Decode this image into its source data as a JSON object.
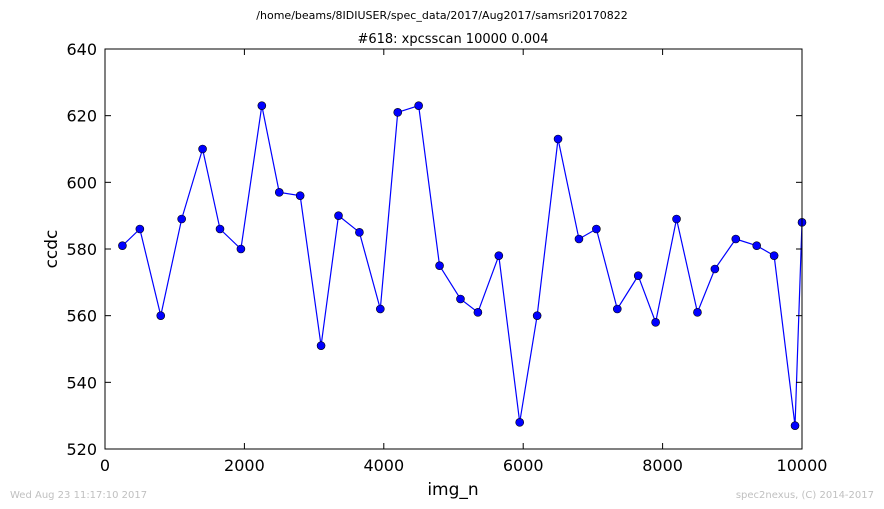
{
  "chart_data": {
    "type": "line",
    "suptitle": "/home/beams/8IDIUSER/spec_data/2017/Aug2017/samsri20170822",
    "title": "#618: xpcsscan 10000 0.004",
    "xlabel": "img_n",
    "ylabel": "ccdc",
    "xlim": [
      0,
      10000
    ],
    "ylim": [
      520,
      640
    ],
    "xticks": [
      0,
      2000,
      4000,
      6000,
      8000,
      10000
    ],
    "yticks": [
      520,
      540,
      560,
      580,
      600,
      620,
      640
    ],
    "grid": false,
    "legend": "none",
    "line_color": "#0000ff",
    "marker": "circle",
    "x": [
      250,
      500,
      800,
      1100,
      1400,
      1650,
      1950,
      2250,
      2500,
      2800,
      3100,
      3350,
      3650,
      3950,
      4200,
      4500,
      4800,
      5100,
      5350,
      5650,
      5950,
      6200,
      6500,
      6800,
      7050,
      7350,
      7650,
      7900,
      8200,
      8500,
      8750,
      9050,
      9350,
      9600,
      9900,
      10000
    ],
    "y": [
      581,
      586,
      560,
      589,
      610,
      586,
      580,
      623,
      597,
      596,
      551,
      590,
      585,
      562,
      621,
      623,
      575,
      565,
      561,
      578,
      528,
      560,
      613,
      583,
      586,
      562,
      572,
      558,
      589,
      561,
      574,
      583,
      581,
      578,
      527,
      588
    ]
  },
  "footer": {
    "left": "Wed Aug 23 11:17:10 2017",
    "right": "spec2nexus, (C) 2014-2017"
  }
}
